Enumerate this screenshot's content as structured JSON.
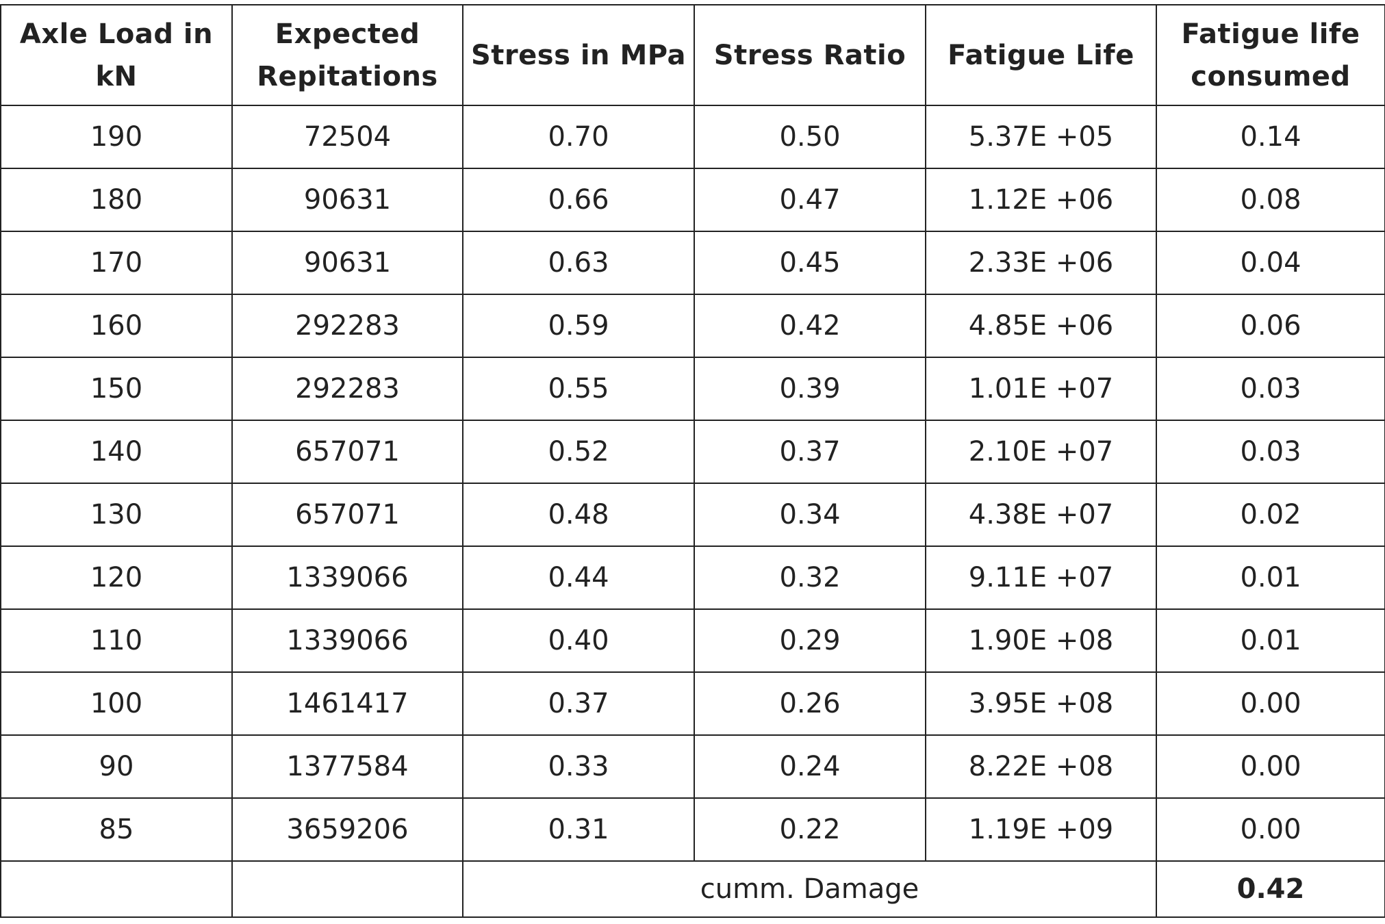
{
  "table": {
    "header": [
      "Axle Load in kN",
      "Expected Repitations",
      "Stress in MPa",
      "Stress Ratio",
      "Fatigue Life",
      "Fatigue life consumed"
    ],
    "rows": [
      [
        "190",
        "72504",
        "0.70",
        "0.50",
        "5.37E +05",
        "0.14"
      ],
      [
        "180",
        "90631",
        "0.66",
        "0.47",
        "1.12E +06",
        "0.08"
      ],
      [
        "170",
        "90631",
        "0.63",
        "0.45",
        "2.33E +06",
        "0.04"
      ],
      [
        "160",
        "292283",
        "0.59",
        "0.42",
        "4.85E +06",
        "0.06"
      ],
      [
        "150",
        "292283",
        "0.55",
        "0.39",
        "1.01E +07",
        "0.03"
      ],
      [
        "140",
        "657071",
        "0.52",
        "0.37",
        "2.10E +07",
        "0.03"
      ],
      [
        "130",
        "657071",
        "0.48",
        "0.34",
        "4.38E +07",
        "0.02"
      ],
      [
        "120",
        "1339066",
        "0.44",
        "0.32",
        "9.11E +07",
        "0.01"
      ],
      [
        "110",
        "1339066",
        "0.40",
        "0.29",
        "1.90E +08",
        "0.01"
      ],
      [
        "100",
        "1461417",
        "0.37",
        "0.26",
        "3.95E +08",
        "0.00"
      ],
      [
        "90",
        "1377584",
        "0.33",
        "0.24",
        "8.22E +08",
        "0.00"
      ],
      [
        "85",
        "3659206",
        "0.31",
        "0.22",
        "1.19E +09",
        "0.00"
      ]
    ],
    "footer": {
      "label": "cumm. Damage",
      "value": "0.42"
    }
  }
}
